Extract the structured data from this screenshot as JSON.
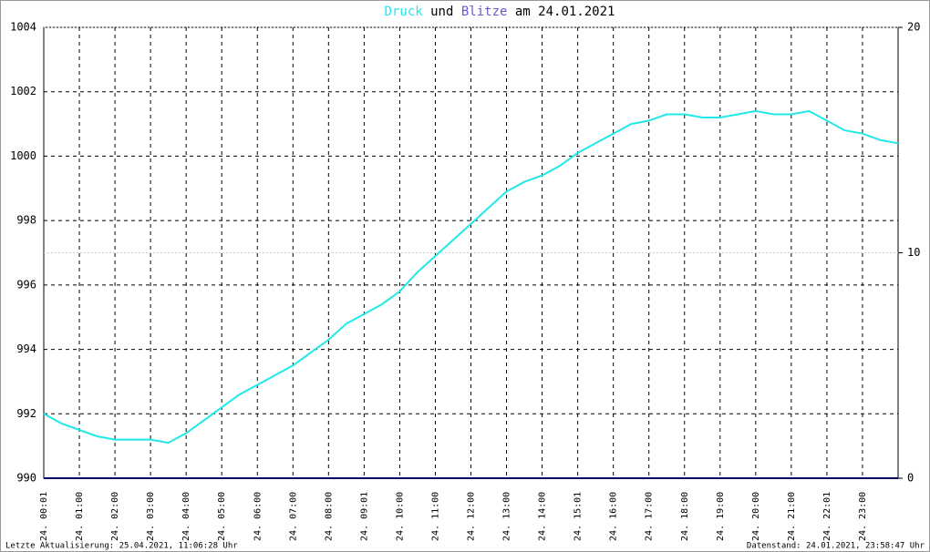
{
  "chart_data": {
    "type": "line",
    "title_parts": [
      "und",
      "am 24.01.2021"
    ],
    "footer_left": "Letzte Aktualisierung: 25.04.2021, 11:06:28 Uhr",
    "footer_right": "Datenstand: 24.01.2021, 23:58:47 Uhr",
    "x": [
      0,
      0.5,
      1,
      1.5,
      2,
      2.5,
      3,
      3.5,
      4,
      4.5,
      5,
      5.5,
      6,
      6.5,
      7,
      7.5,
      8,
      8.5,
      9,
      9.5,
      10,
      10.5,
      11,
      11.5,
      12,
      12.5,
      13,
      13.5,
      14,
      14.5,
      15,
      15.5,
      16,
      16.5,
      17,
      17.5,
      18,
      18.5,
      19,
      19.5,
      20,
      20.5,
      21,
      21.5,
      22,
      22.5,
      23,
      23.5,
      24
    ],
    "series": [
      {
        "name": "Druck",
        "color": "#22e8e8",
        "values": [
          992.0,
          991.7,
          991.5,
          991.3,
          991.2,
          991.2,
          991.2,
          991.1,
          991.4,
          991.8,
          992.2,
          992.6,
          992.9,
          993.2,
          993.5,
          993.9,
          994.3,
          994.8,
          995.1,
          995.4,
          995.8,
          996.4,
          996.9,
          997.4,
          997.9,
          998.4,
          998.9,
          999.2,
          999.4,
          999.7,
          1000.1,
          1000.4,
          1000.7,
          1001.0,
          1001.1,
          1001.3,
          1001.3,
          1001.2,
          1001.2,
          1001.3,
          1001.4,
          1001.3,
          1001.3,
          1001.4,
          1001.1,
          1000.8,
          1000.7,
          1000.5,
          1000.4
        ]
      },
      {
        "name": "Blitze",
        "color": "#6a5acd",
        "axis": "y2",
        "line_color": "#000060",
        "values": [
          0,
          0,
          0,
          0,
          0,
          0,
          0,
          0,
          0,
          0,
          0,
          0,
          0,
          0,
          0,
          0,
          0,
          0,
          0,
          0,
          0,
          0,
          0,
          0,
          0,
          0,
          0,
          0,
          0,
          0,
          0,
          0,
          0,
          0,
          0,
          0,
          0,
          0,
          0,
          0,
          0,
          0,
          0,
          0,
          0,
          0,
          0,
          0,
          0
        ]
      }
    ],
    "xlim": [
      0,
      24
    ],
    "xticks": [
      {
        "value": 0,
        "label": "24. 00:01"
      },
      {
        "value": 1,
        "label": "24. 01:00"
      },
      {
        "value": 2,
        "label": "24. 02:00"
      },
      {
        "value": 3,
        "label": "24. 03:00"
      },
      {
        "value": 4,
        "label": "24. 04:00"
      },
      {
        "value": 5,
        "label": "24. 05:00"
      },
      {
        "value": 6,
        "label": "24. 06:00"
      },
      {
        "value": 7,
        "label": "24. 07:00"
      },
      {
        "value": 8,
        "label": "24. 08:00"
      },
      {
        "value": 9,
        "label": "24. 09:01"
      },
      {
        "value": 10,
        "label": "24. 10:00"
      },
      {
        "value": 11,
        "label": "24. 11:00"
      },
      {
        "value": 12,
        "label": "24. 12:00"
      },
      {
        "value": 13,
        "label": "24. 13:00"
      },
      {
        "value": 14,
        "label": "24. 14:00"
      },
      {
        "value": 15,
        "label": "24. 15:01"
      },
      {
        "value": 16,
        "label": "24. 16:00"
      },
      {
        "value": 17,
        "label": "24. 17:00"
      },
      {
        "value": 18,
        "label": "24. 18:00"
      },
      {
        "value": 19,
        "label": "24. 19:00"
      },
      {
        "value": 20,
        "label": "24. 20:00"
      },
      {
        "value": 21,
        "label": "24. 21:00"
      },
      {
        "value": 22,
        "label": "24. 22:01"
      },
      {
        "value": 23,
        "label": "24. 23:00"
      }
    ],
    "ylim": [
      990,
      1004
    ],
    "yticks": [
      990,
      992,
      994,
      996,
      998,
      1000,
      1002,
      1004
    ],
    "y2lim": [
      0,
      20
    ],
    "y2ticks": [
      0,
      10,
      20
    ],
    "grid": true
  }
}
